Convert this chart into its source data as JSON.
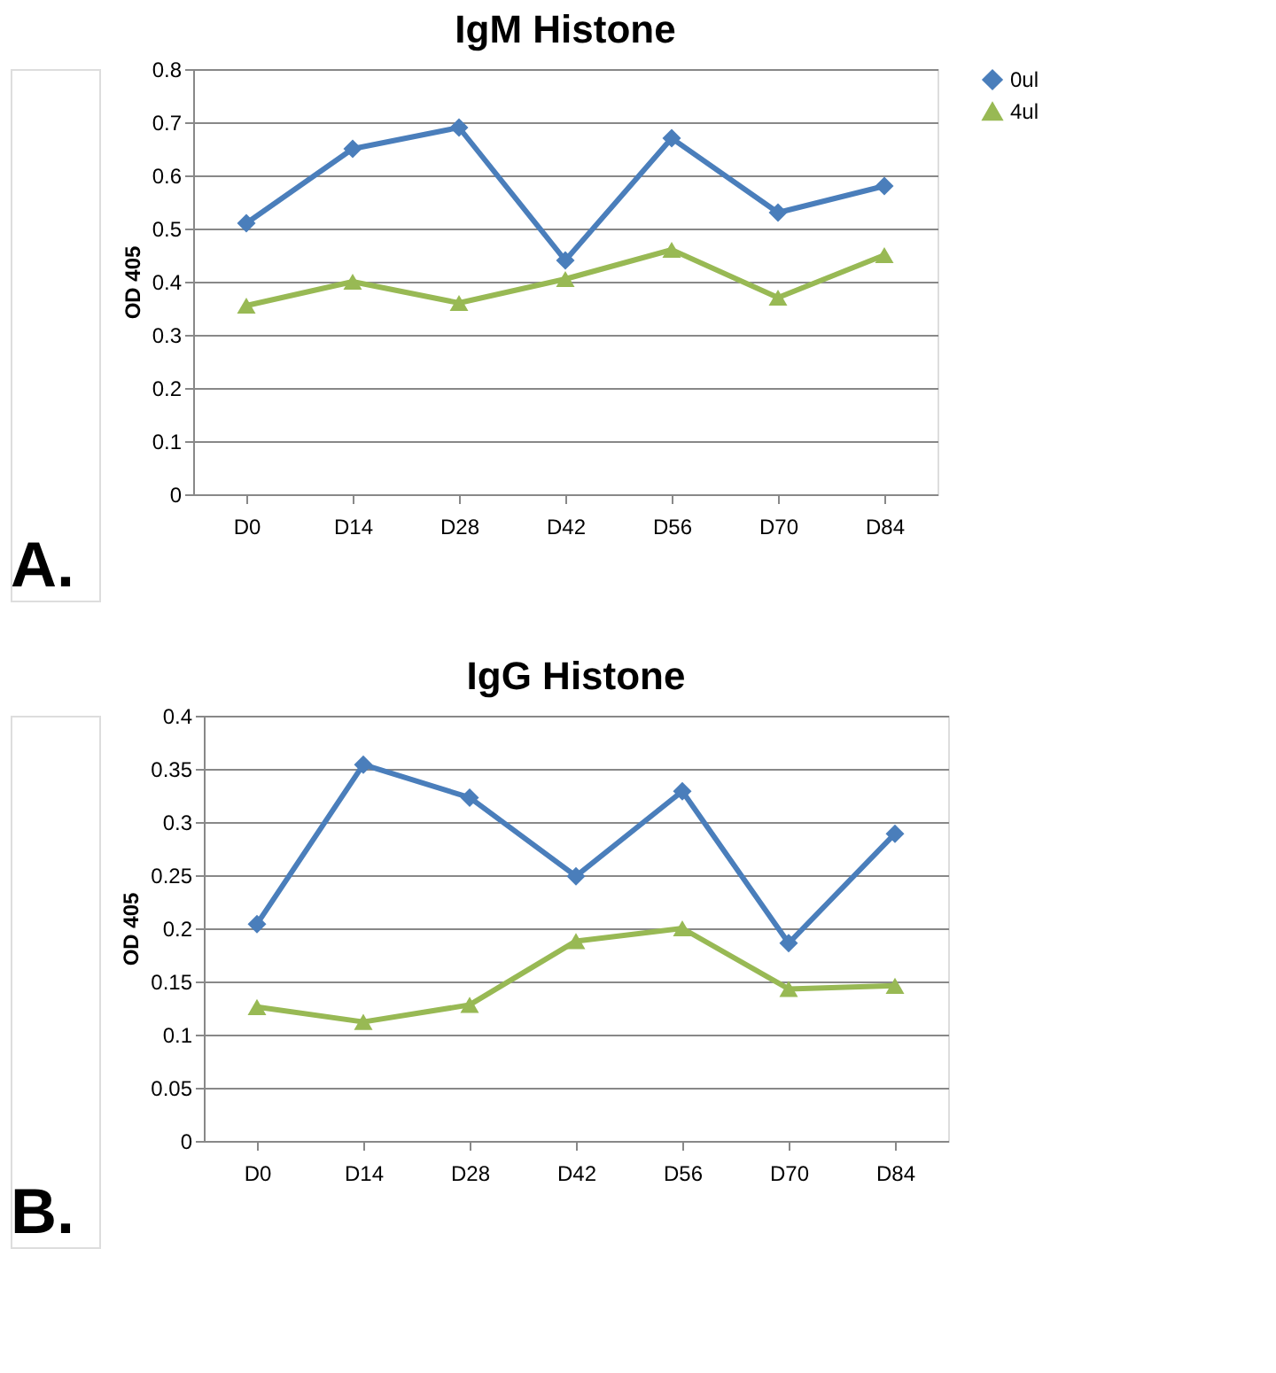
{
  "chart_data": [
    {
      "type": "line",
      "title": "IgM Histone",
      "ylabel": "OD 405",
      "categories": [
        "D0",
        "D14",
        "D28",
        "D42",
        "D56",
        "D70",
        "D84"
      ],
      "series": [
        {
          "name": "0ul",
          "color": "#4a7ebb",
          "marker": "diamond",
          "values": [
            0.51,
            0.65,
            0.69,
            0.44,
            0.67,
            0.53,
            0.58
          ]
        },
        {
          "name": "4ul",
          "color": "#98b954",
          "marker": "triangle",
          "values": [
            0.355,
            0.4,
            0.36,
            0.405,
            0.46,
            0.37,
            0.45
          ]
        }
      ],
      "ylim": [
        0,
        0.8
      ],
      "yticks": [
        0,
        0.1,
        0.2,
        0.3,
        0.4,
        0.5,
        0.6,
        0.7,
        0.8
      ],
      "grid": "y",
      "legend": "right",
      "line_style": "solid",
      "annotations": [
        "A."
      ]
    },
    {
      "type": "line",
      "title": "IgG Histone",
      "ylabel": "OD 405",
      "categories": [
        "D0",
        "D14",
        "D28",
        "D42",
        "D56",
        "D70",
        "D84"
      ],
      "series": [
        {
          "name": "0ul",
          "color": "#4a7ebb",
          "marker": "diamond",
          "values": [
            0.204,
            0.354,
            0.323,
            0.249,
            0.329,
            0.186,
            0.289
          ]
        },
        {
          "name": "4ul",
          "color": "#98b954",
          "marker": "triangle",
          "values": [
            0.126,
            0.112,
            0.128,
            0.188,
            0.2,
            0.143,
            0.146
          ]
        }
      ],
      "ylim": [
        0,
        0.4
      ],
      "yticks": [
        0,
        0.05,
        0.1,
        0.15,
        0.2,
        0.25,
        0.3,
        0.35,
        0.4
      ],
      "grid": "y",
      "legend": "right",
      "line_style": "solid",
      "annotations": [
        "B."
      ]
    }
  ]
}
